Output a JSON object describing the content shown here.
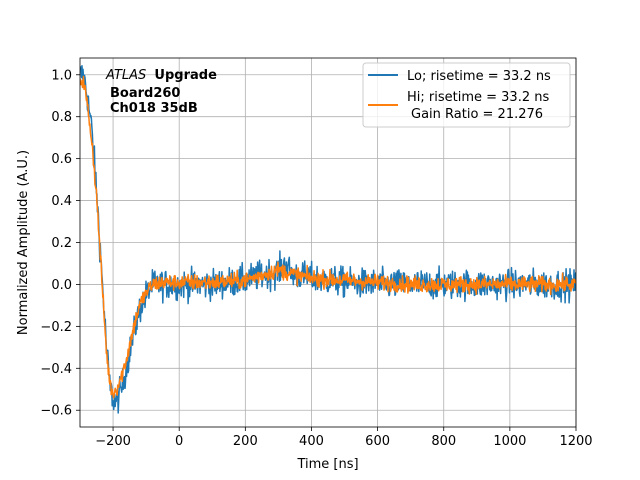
{
  "chart_data": {
    "type": "line",
    "xlabel": "Time [ns]",
    "ylabel": "Normalized Amplitude (A.U.)",
    "xlim": [
      -300,
      1200
    ],
    "ylim": [
      -0.68,
      1.08
    ],
    "xticks": [
      -200,
      0,
      200,
      400,
      600,
      800,
      1000,
      1200
    ],
    "yticks": [
      -0.6,
      -0.4,
      -0.2,
      0.0,
      0.2,
      0.4,
      0.6,
      0.8,
      1.0
    ],
    "xtick_labels": [
      "−200",
      "0",
      "200",
      "400",
      "600",
      "800",
      "1000",
      "1200"
    ],
    "ytick_labels": [
      "−0.6",
      "−0.4",
      "−0.2",
      "0.0",
      "0.2",
      "0.4",
      "0.6",
      "0.8",
      "1.0"
    ],
    "grid": true,
    "legend_position": "top-right",
    "annotation": {
      "atlas": "ATLAS",
      "upgrade": "Upgrade",
      "board": "Board260",
      "channel": "Ch018 35dB"
    },
    "legend": {
      "lo": "Lo; risetime = 33.2 ns",
      "hi_line1": "Hi; risetime = 33.2 ns",
      "hi_line2": "Gain Ratio = 21.276"
    },
    "series": [
      {
        "name": "Lo",
        "color": "#1f77b4",
        "noise": 0.055,
        "points": [
          [
            -290,
            1.0
          ],
          [
            -280,
            0.92
          ],
          [
            -265,
            0.75
          ],
          [
            -250,
            0.45
          ],
          [
            -240,
            0.2
          ],
          [
            -230,
            -0.05
          ],
          [
            -220,
            -0.3
          ],
          [
            -210,
            -0.48
          ],
          [
            -200,
            -0.55
          ],
          [
            -190,
            -0.56
          ],
          [
            -175,
            -0.5
          ],
          [
            -160,
            -0.4
          ],
          [
            -140,
            -0.25
          ],
          [
            -120,
            -0.12
          ],
          [
            -100,
            -0.05
          ],
          [
            -80,
            0.0
          ],
          [
            -50,
            0.0
          ],
          [
            0,
            0.0
          ],
          [
            100,
            0.0
          ],
          [
            200,
            0.02
          ],
          [
            260,
            0.05
          ],
          [
            300,
            0.06
          ],
          [
            320,
            0.1
          ],
          [
            340,
            0.05
          ],
          [
            400,
            0.03
          ],
          [
            500,
            0.01
          ],
          [
            600,
            0.0
          ],
          [
            700,
            0.0
          ],
          [
            800,
            0.0
          ],
          [
            900,
            0.0
          ],
          [
            1000,
            0.0
          ],
          [
            1100,
            0.0
          ],
          [
            1200,
            0.0
          ]
        ]
      },
      {
        "name": "Hi",
        "color": "#ff7f0e",
        "noise": 0.03,
        "points": [
          [
            -290,
            0.97
          ],
          [
            -280,
            0.88
          ],
          [
            -265,
            0.7
          ],
          [
            -250,
            0.42
          ],
          [
            -240,
            0.18
          ],
          [
            -230,
            -0.08
          ],
          [
            -220,
            -0.32
          ],
          [
            -210,
            -0.47
          ],
          [
            -200,
            -0.52
          ],
          [
            -190,
            -0.5
          ],
          [
            -175,
            -0.44
          ],
          [
            -160,
            -0.36
          ],
          [
            -140,
            -0.22
          ],
          [
            -120,
            -0.1
          ],
          [
            -100,
            -0.04
          ],
          [
            -80,
            0.0
          ],
          [
            -50,
            0.01
          ],
          [
            0,
            0.01
          ],
          [
            100,
            0.01
          ],
          [
            200,
            0.02
          ],
          [
            260,
            0.05
          ],
          [
            300,
            0.07
          ],
          [
            340,
            0.05
          ],
          [
            400,
            0.03
          ],
          [
            500,
            0.02
          ],
          [
            600,
            0.01
          ],
          [
            700,
            0.0
          ],
          [
            800,
            0.0
          ],
          [
            900,
            0.0
          ],
          [
            1000,
            0.0
          ],
          [
            1100,
            0.0
          ],
          [
            1200,
            0.0
          ]
        ]
      }
    ]
  }
}
